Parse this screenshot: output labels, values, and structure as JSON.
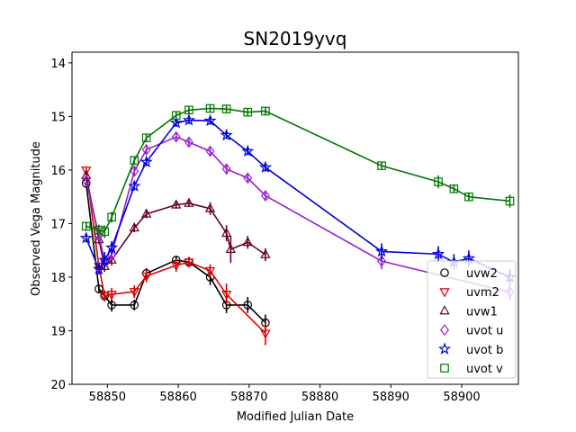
{
  "chart_data": {
    "type": "scatter",
    "title": "SN2019yvq",
    "xlabel": "Modified Julian Date",
    "ylabel": "Observed Vega Magnitude",
    "xlim": [
      58845,
      58908
    ],
    "ylim": [
      20,
      13.8
    ],
    "y_inverted": true,
    "xticks": [
      58850,
      58860,
      58870,
      58880,
      58890,
      58900
    ],
    "yticks": [
      14,
      15,
      16,
      17,
      18,
      19,
      20
    ],
    "grid": false,
    "legend_position": "lower-right",
    "series": [
      {
        "name": "uvw2",
        "color": "#000000",
        "marker": "circle",
        "points": [
          {
            "x": 58847.0,
            "y": 16.25,
            "err": 0.05
          },
          {
            "x": 58848.8,
            "y": 18.22,
            "err": 0.08
          },
          {
            "x": 58849.6,
            "y": 18.35,
            "err": 0.1
          },
          {
            "x": 58850.6,
            "y": 18.52,
            "err": 0.12
          },
          {
            "x": 58853.8,
            "y": 18.52,
            "err": 0.1
          },
          {
            "x": 58855.5,
            "y": 17.93,
            "err": 0.1
          },
          {
            "x": 58859.7,
            "y": 17.68,
            "err": 0.08
          },
          {
            "x": 58861.5,
            "y": 17.72,
            "err": 0.08
          },
          {
            "x": 58864.5,
            "y": 18.0,
            "err": 0.15
          },
          {
            "x": 58866.8,
            "y": 18.52,
            "err": 0.15
          },
          {
            "x": 58869.8,
            "y": 18.52,
            "err": 0.15
          },
          {
            "x": 58872.3,
            "y": 18.85,
            "err": 0.15
          }
        ]
      },
      {
        "name": "uvm2",
        "color": "#dd0000",
        "marker": "triangle-down",
        "points": [
          {
            "x": 58847.0,
            "y": 16.0,
            "err": 0.05
          },
          {
            "x": 58848.8,
            "y": 17.8,
            "err": 0.08
          },
          {
            "x": 58849.6,
            "y": 18.35,
            "err": 0.1
          },
          {
            "x": 58850.6,
            "y": 18.32,
            "err": 0.12
          },
          {
            "x": 58853.8,
            "y": 18.27,
            "err": 0.12
          },
          {
            "x": 58855.5,
            "y": 17.98,
            "err": 0.12
          },
          {
            "x": 58859.7,
            "y": 17.78,
            "err": 0.12
          },
          {
            "x": 58861.5,
            "y": 17.72,
            "err": 0.1
          },
          {
            "x": 58864.5,
            "y": 17.88,
            "err": 0.12
          },
          {
            "x": 58866.8,
            "y": 18.32,
            "err": 0.2
          },
          {
            "x": 58872.3,
            "y": 19.05,
            "err": 0.22
          }
        ]
      },
      {
        "name": "uvw1",
        "color": "#660022",
        "marker": "triangle-up",
        "points": [
          {
            "x": 58847.0,
            "y": 16.1,
            "err": 0.05
          },
          {
            "x": 58848.8,
            "y": 17.3,
            "err": 0.08
          },
          {
            "x": 58849.6,
            "y": 17.8,
            "err": 0.1
          },
          {
            "x": 58850.6,
            "y": 17.68,
            "err": 0.1
          },
          {
            "x": 58853.8,
            "y": 17.08,
            "err": 0.08
          },
          {
            "x": 58855.5,
            "y": 16.82,
            "err": 0.08
          },
          {
            "x": 58859.7,
            "y": 16.65,
            "err": 0.07
          },
          {
            "x": 58861.5,
            "y": 16.62,
            "err": 0.07
          },
          {
            "x": 58864.5,
            "y": 16.72,
            "err": 0.12
          },
          {
            "x": 58866.8,
            "y": 17.18,
            "err": 0.15
          },
          {
            "x": 58867.4,
            "y": 17.48,
            "err": 0.25
          },
          {
            "x": 58869.8,
            "y": 17.35,
            "err": 0.12
          },
          {
            "x": 58872.3,
            "y": 17.58,
            "err": 0.12
          }
        ]
      },
      {
        "name": "uvot u",
        "color": "#9922cc",
        "marker": "diamond",
        "points": [
          {
            "x": 58847.0,
            "y": 16.2,
            "err": 0.05
          },
          {
            "x": 58848.8,
            "y": 17.22,
            "err": 0.08
          },
          {
            "x": 58849.6,
            "y": 17.7,
            "err": 0.1
          },
          {
            "x": 58850.6,
            "y": 17.58,
            "err": 0.1
          },
          {
            "x": 58853.8,
            "y": 16.02,
            "err": 0.1
          },
          {
            "x": 58855.5,
            "y": 15.62,
            "err": 0.08
          },
          {
            "x": 58859.7,
            "y": 15.38,
            "err": 0.07
          },
          {
            "x": 58861.5,
            "y": 15.48,
            "err": 0.07
          },
          {
            "x": 58864.5,
            "y": 15.65,
            "err": 0.08
          },
          {
            "x": 58866.8,
            "y": 15.98,
            "err": 0.08
          },
          {
            "x": 58869.8,
            "y": 16.15,
            "err": 0.08
          },
          {
            "x": 58872.3,
            "y": 16.48,
            "err": 0.08
          },
          {
            "x": 58888.7,
            "y": 17.7,
            "err": 0.15
          },
          {
            "x": 58906.8,
            "y": 18.28,
            "err": 0.15
          }
        ]
      },
      {
        "name": "uvot b",
        "color": "#0000dd",
        "marker": "star",
        "points": [
          {
            "x": 58847.0,
            "y": 17.27,
            "err": 0.08
          },
          {
            "x": 58848.8,
            "y": 17.85,
            "err": 0.1
          },
          {
            "x": 58849.6,
            "y": 17.68,
            "err": 0.15
          },
          {
            "x": 58850.6,
            "y": 17.45,
            "err": 0.12
          },
          {
            "x": 58853.8,
            "y": 16.3,
            "err": 0.08
          },
          {
            "x": 58855.5,
            "y": 15.85,
            "err": 0.08
          },
          {
            "x": 58859.7,
            "y": 15.12,
            "err": 0.07
          },
          {
            "x": 58861.5,
            "y": 15.07,
            "err": 0.07
          },
          {
            "x": 58864.5,
            "y": 15.08,
            "err": 0.07
          },
          {
            "x": 58866.8,
            "y": 15.35,
            "err": 0.07
          },
          {
            "x": 58869.8,
            "y": 15.65,
            "err": 0.07
          },
          {
            "x": 58872.3,
            "y": 15.95,
            "err": 0.08
          },
          {
            "x": 58888.7,
            "y": 17.52,
            "err": 0.15
          },
          {
            "x": 58896.7,
            "y": 17.57,
            "err": 0.15
          },
          {
            "x": 58898.9,
            "y": 17.72,
            "err": 0.15
          },
          {
            "x": 58901.0,
            "y": 17.65,
            "err": 0.15
          },
          {
            "x": 58906.8,
            "y": 18.0,
            "err": 0.15
          }
        ]
      },
      {
        "name": "uvot v",
        "color": "#007700",
        "marker": "square",
        "points": [
          {
            "x": 58847.0,
            "y": 17.05,
            "err": 0.08
          },
          {
            "x": 58848.8,
            "y": 17.12,
            "err": 0.1
          },
          {
            "x": 58849.6,
            "y": 17.15,
            "err": 0.12
          },
          {
            "x": 58850.6,
            "y": 16.88,
            "err": 0.1
          },
          {
            "x": 58853.8,
            "y": 15.82,
            "err": 0.08
          },
          {
            "x": 58855.5,
            "y": 15.4,
            "err": 0.07
          },
          {
            "x": 58859.7,
            "y": 14.98,
            "err": 0.07
          },
          {
            "x": 58861.5,
            "y": 14.88,
            "err": 0.07
          },
          {
            "x": 58864.5,
            "y": 14.85,
            "err": 0.07
          },
          {
            "x": 58866.8,
            "y": 14.86,
            "err": 0.07
          },
          {
            "x": 58869.8,
            "y": 14.92,
            "err": 0.08
          },
          {
            "x": 58872.3,
            "y": 14.9,
            "err": 0.08
          },
          {
            "x": 58888.7,
            "y": 15.92,
            "err": 0.08
          },
          {
            "x": 58896.7,
            "y": 16.22,
            "err": 0.12
          },
          {
            "x": 58898.9,
            "y": 16.35,
            "err": 0.08
          },
          {
            "x": 58901.0,
            "y": 16.5,
            "err": 0.08
          },
          {
            "x": 58906.8,
            "y": 16.58,
            "err": 0.12
          }
        ]
      }
    ]
  }
}
